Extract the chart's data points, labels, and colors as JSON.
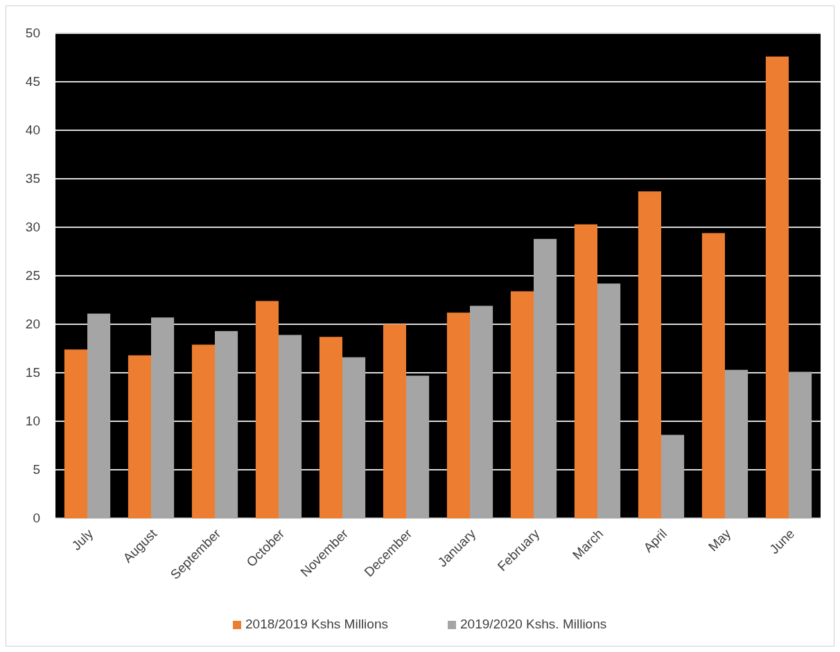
{
  "chart_data": {
    "type": "bar",
    "categories": [
      "July",
      "August",
      "September",
      "October",
      "November",
      "December",
      "January",
      "February",
      "March",
      "April",
      "May",
      "June"
    ],
    "series": [
      {
        "name": "2018/2019  Kshs Millions",
        "color": "#ed7d31",
        "values": [
          17.4,
          16.8,
          17.9,
          22.4,
          18.7,
          20.0,
          21.2,
          23.4,
          30.3,
          33.7,
          29.4,
          47.6
        ]
      },
      {
        "name": "2019/2020 Kshs. Millions",
        "color": "#a5a5a5",
        "values": [
          21.1,
          20.7,
          19.3,
          18.9,
          16.6,
          14.7,
          21.9,
          28.8,
          24.2,
          8.6,
          15.3,
          15.1
        ]
      }
    ],
    "ylim": [
      0,
      50
    ],
    "yticks": [
      0,
      5,
      10,
      15,
      20,
      25,
      30,
      35,
      40,
      45,
      50
    ],
    "grid": true,
    "legend": "bottom"
  }
}
